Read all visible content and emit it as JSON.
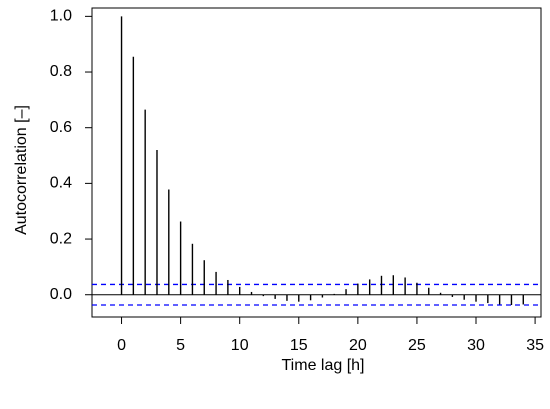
{
  "chart_data": {
    "type": "bar",
    "xlabel": "Time lag [h]",
    "ylabel": "Autocorrelation [–]",
    "xlim": [
      -2.5,
      35.5
    ],
    "ylim": [
      -0.08,
      1.03
    ],
    "xticks": [
      0,
      5,
      10,
      15,
      20,
      25,
      30,
      35
    ],
    "yticks": [
      0.0,
      0.2,
      0.4,
      0.6,
      0.8,
      1.0
    ],
    "xtick_labels": [
      "0",
      "5",
      "10",
      "15",
      "20",
      "25",
      "30",
      "35"
    ],
    "ytick_labels": [
      "0.0",
      "0.2",
      "0.4",
      "0.6",
      "0.8",
      "1.0"
    ],
    "lags": [
      0,
      1,
      2,
      3,
      4,
      5,
      6,
      7,
      8,
      9,
      10,
      11,
      12,
      13,
      14,
      15,
      16,
      17,
      18,
      19,
      20,
      21,
      22,
      23,
      24,
      25,
      26,
      27,
      28,
      29,
      30,
      31,
      32,
      33,
      34
    ],
    "values": [
      1.0,
      0.855,
      0.665,
      0.52,
      0.378,
      0.263,
      0.183,
      0.124,
      0.082,
      0.053,
      0.028,
      0.01,
      -0.005,
      -0.015,
      -0.022,
      -0.025,
      -0.02,
      -0.01,
      0.003,
      0.02,
      0.04,
      0.055,
      0.068,
      0.07,
      0.062,
      0.043,
      0.025,
      0.007,
      -0.008,
      -0.018,
      -0.025,
      -0.03,
      -0.035,
      -0.037,
      -0.035
    ],
    "confidence_bounds": [
      0.037,
      -0.037
    ],
    "zero_line": true,
    "grid": false,
    "colors": {
      "bars": "#000000",
      "zero_line": "#000000",
      "confidence": "#0000ff"
    }
  }
}
